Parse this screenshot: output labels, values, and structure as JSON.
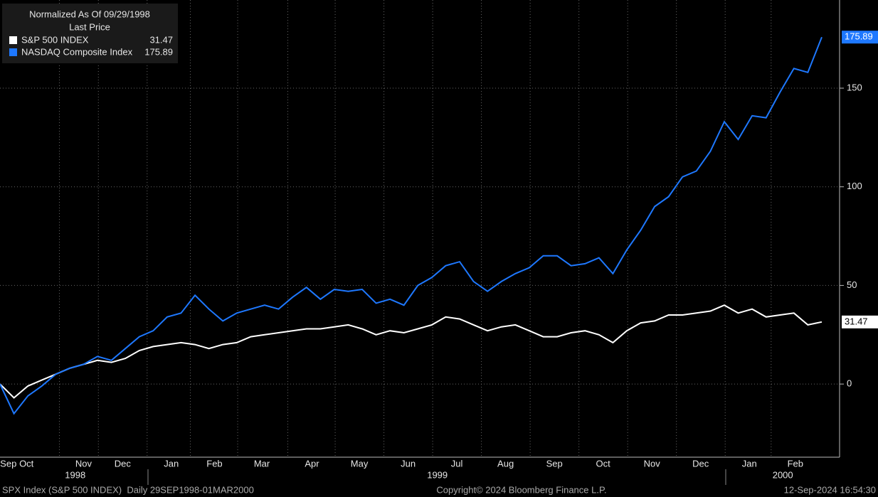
{
  "chart_data": {
    "type": "line",
    "legend_title": "Normalized As Of 09/29/1998",
    "legend_subtitle": "Last Price",
    "xlim": [
      0,
      59
    ],
    "xticks": [
      {
        "value": 0.6,
        "label": "Sep"
      },
      {
        "value": 1.9,
        "label": "Oct"
      },
      {
        "value": 6.0,
        "label": "Nov"
      },
      {
        "value": 8.8,
        "label": "Dec"
      },
      {
        "value": 12.3,
        "label": "Jan"
      },
      {
        "value": 15.4,
        "label": "Feb"
      },
      {
        "value": 18.8,
        "label": "Mar"
      },
      {
        "value": 22.4,
        "label": "Apr"
      },
      {
        "value": 25.8,
        "label": "May"
      },
      {
        "value": 29.3,
        "label": "Jun"
      },
      {
        "value": 32.8,
        "label": "Jul"
      },
      {
        "value": 36.3,
        "label": "Aug"
      },
      {
        "value": 39.8,
        "label": "Sep"
      },
      {
        "value": 43.3,
        "label": "Oct"
      },
      {
        "value": 46.8,
        "label": "Nov"
      },
      {
        "value": 50.3,
        "label": "Dec"
      },
      {
        "value": 53.8,
        "label": "Jan"
      },
      {
        "value": 57.1,
        "label": "Feb"
      }
    ],
    "year_ticks": [
      {
        "value": 5.4,
        "label": "1998"
      },
      {
        "value": 31.4,
        "label": "1999"
      },
      {
        "value": 56.2,
        "label": "2000"
      }
    ],
    "ylim": [
      -36,
      194.7
    ],
    "yticks": [
      0,
      50,
      100,
      150
    ],
    "grid": true,
    "series": [
      {
        "name": "S&P 500 INDEX",
        "color": "#ffffff",
        "values": [
          0,
          -7,
          -1,
          2,
          5,
          8,
          10,
          12,
          11,
          13,
          17,
          19,
          20,
          21,
          20,
          18,
          20,
          21,
          24,
          25,
          26,
          27,
          28,
          28,
          29,
          30,
          28,
          25,
          27,
          26,
          28,
          30,
          34,
          33,
          30,
          27,
          29,
          30,
          27,
          24,
          24,
          26,
          27,
          25,
          21,
          27,
          31,
          32,
          35,
          35,
          36,
          37,
          40,
          36,
          38,
          34,
          35,
          36,
          30,
          31.47
        ]
      },
      {
        "name": "NASDAQ Composite Index",
        "color": "#1e78ff",
        "values": [
          0,
          -15,
          -6,
          -1,
          5,
          8,
          10,
          14,
          12,
          18,
          24,
          27,
          34,
          36,
          45,
          38,
          32,
          36,
          38,
          40,
          38,
          44,
          49,
          43,
          48,
          47,
          48,
          41,
          43,
          40,
          50,
          54,
          60,
          62,
          52,
          47,
          52,
          56,
          59,
          65,
          65,
          60,
          61,
          64,
          56,
          68,
          78,
          90,
          95,
          105,
          108,
          118,
          133,
          124,
          136,
          135,
          148,
          160,
          158,
          175.89
        ]
      }
    ],
    "footer_left": "SPX Index (S&P 500 INDEX)  Daily 29SEP1998-01MAR2000",
    "footer_center": "Copyright© 2024 Bloomberg Finance L.P.",
    "footer_right": "12-Sep-2024 16:54:30"
  }
}
